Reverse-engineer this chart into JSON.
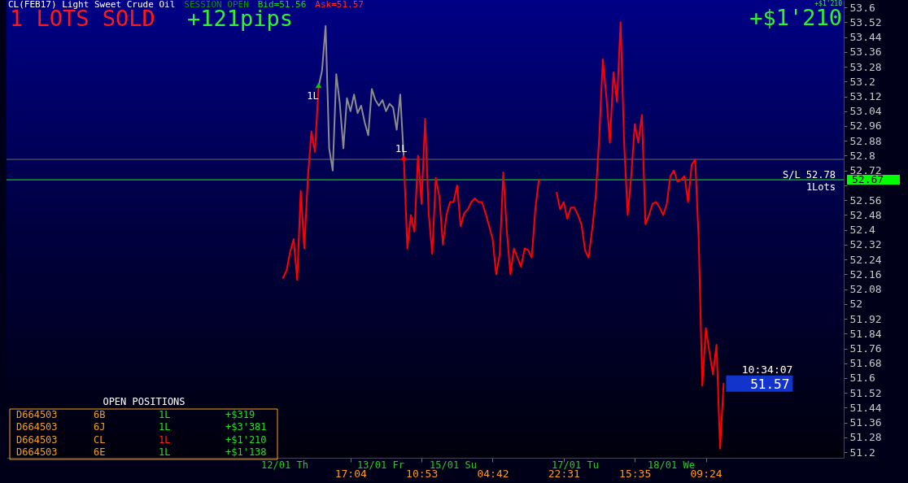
{
  "chart_data": {
    "type": "line",
    "title": "CL(FEB17) Light Sweet Crude Oil",
    "annotations": [
      "SESSION OPEN",
      "Bid=51.56",
      "Ask=51.57",
      "1 LOTS SOLD",
      "+121pips",
      "+$1'210",
      "+$1'210",
      "OPEN POSITIONS",
      "D664503",
      "6B",
      "1L",
      "+$319",
      "D664503",
      "6J",
      "1L",
      "+$3'381",
      "D664503",
      "CL",
      "1L",
      "+$1'210",
      "D664503",
      "6E",
      "1L",
      "+$1'138",
      "12/01 Th",
      "13/01 Fr",
      "15/01 Su",
      "17/01 Tu",
      "18/01 We",
      "10:34:07",
      "51.57",
      {
        "text": "S/L 52.78",
        "y": 52.67
      },
      {
        "text": "1Lots",
        "y": 52.67
      }
    ],
    "categories": [
      null,
      null,
      null,
      null,
      null,
      null,
      null,
      null,
      null,
      null,
      null,
      null,
      null,
      null,
      null,
      null,
      null,
      null,
      null,
      null,
      null,
      null,
      null,
      null,
      null,
      null,
      null,
      null,
      null,
      null,
      null,
      null,
      null,
      null,
      null,
      null,
      null,
      null,
      null,
      null,
      null,
      null,
      null,
      null,
      null,
      null,
      null,
      null,
      null,
      null,
      null,
      null,
      null,
      null,
      null,
      null,
      null,
      null,
      null,
      null,
      null,
      null,
      null,
      null,
      null,
      null,
      null,
      null,
      null,
      null,
      null,
      null,
      null,
      null,
      null,
      null,
      null,
      null,
      null,
      null,
      null,
      null,
      null,
      null,
      null,
      null,
      null,
      null,
      null,
      null,
      null,
      null,
      null,
      null,
      null,
      null,
      "17:04",
      null,
      null,
      null,
      null,
      null,
      null,
      null,
      null,
      null,
      null,
      null,
      null,
      null,
      null,
      null,
      null,
      null,
      null,
      null,
      "10:53",
      null,
      null,
      null,
      null,
      null,
      null,
      null,
      null,
      null,
      null,
      null,
      null,
      null,
      null,
      null,
      null,
      null,
      null,
      null,
      "04:42",
      null,
      null,
      null,
      null,
      null,
      null,
      null,
      null,
      null,
      null,
      null,
      null,
      null,
      null,
      null,
      null,
      null,
      null,
      null,
      "22:31",
      null,
      null,
      null,
      null,
      null,
      null,
      null,
      null,
      null,
      null,
      null,
      null,
      null,
      null,
      null,
      null,
      null,
      null,
      null,
      "15:35",
      null,
      null,
      null,
      null,
      null,
      null,
      null,
      null,
      null,
      null,
      null,
      null,
      null,
      null,
      null,
      null,
      null,
      null,
      null,
      "09:24",
      null,
      null,
      null,
      null,
      null,
      null,
      null,
      null,
      null,
      null,
      null,
      null,
      null,
      null,
      null,
      null,
      null,
      null,
      null,
      null,
      null,
      null,
      null,
      null,
      null,
      null,
      null,
      null,
      null,
      null,
      null,
      null,
      null,
      null,
      null,
      null,
      null,
      null
    ],
    "ylim": [
      51.17,
      53.64
    ],
    "yticks": [
      51.2,
      51.28,
      51.36,
      51.44,
      51.52,
      51.6,
      51.68,
      51.76,
      51.84,
      51.92,
      52,
      52.08,
      52.16,
      52.24,
      52.32,
      52.4,
      52.48,
      52.56,
      {
        "value": 52.64,
        "label": null
      },
      52.72,
      52.8,
      52.88,
      52.96,
      53.04,
      53.12,
      53.2,
      53.28,
      53.36,
      53.44,
      53.52,
      53.6
    ],
    "ref_lines": [
      {
        "axis": "y",
        "value": 52.78,
        "color": "#6a6a6a"
      },
      {
        "axis": "y",
        "value": 52.67,
        "color": "#00ff00",
        "label": "52.67"
      }
    ],
    "series": [
      {
        "color": "#ff0000",
        "values": [
          null,
          null,
          null,
          null,
          null,
          null,
          null,
          null,
          null,
          null,
          null,
          null,
          null,
          null,
          null,
          null,
          null,
          null,
          null,
          null,
          null,
          null,
          null,
          null,
          null,
          null,
          null,
          null,
          null,
          null,
          null,
          null,
          null,
          null,
          null,
          null,
          null,
          null,
          null,
          null,
          null,
          null,
          null,
          null,
          null,
          null,
          null,
          null,
          null,
          null,
          null,
          null,
          null,
          null,
          null,
          null,
          null,
          null,
          null,
          null,
          null,
          null,
          null,
          null,
          null,
          null,
          null,
          null,
          null,
          null,
          null,
          null,
          null,
          null,
          null,
          null,
          null,
          52.14,
          52.18,
          52.28,
          52.35,
          52.13,
          52.61,
          52.3,
          52.68,
          52.93,
          52.82,
          53.17,
          null,
          null,
          null,
          null,
          null,
          null,
          null,
          null,
          null,
          null,
          null,
          null,
          null,
          null,
          null,
          null,
          null,
          null,
          null,
          null,
          null,
          null,
          null,
          52.79,
          52.3,
          52.48,
          52.39,
          52.8,
          52.54,
          53.0,
          52.49,
          52.27,
          52.68,
          52.58,
          52.32,
          52.48,
          52.55,
          52.55,
          52.64,
          52.42,
          52.49,
          52.51,
          52.55,
          52.57,
          52.55,
          52.55,
          52.49,
          52.42,
          52.35,
          52.16,
          52.27,
          52.71,
          52.39,
          52.16,
          52.3,
          52.25,
          52.2,
          52.3,
          52.29,
          52.25,
          52.51,
          52.67,
          null,
          null,
          null,
          null,
          52.6,
          52.51,
          52.55,
          52.46,
          52.52,
          52.52,
          52.48,
          52.43,
          52.29,
          52.25,
          52.4,
          52.58,
          52.9,
          53.32,
          53.12,
          52.87,
          53.25,
          53.09,
          53.52,
          52.87,
          52.48,
          52.69,
          52.97,
          52.87,
          53.02,
          52.43,
          52.48,
          52.54,
          52.55,
          52.52,
          52.48,
          52.54,
          52.69,
          52.72,
          52.66,
          52.67,
          52.69,
          52.55,
          52.75,
          52.78,
          52.34,
          51.56,
          51.87,
          51.74,
          51.62,
          51.78,
          51.22,
          51.57,
          null,
          null,
          null,
          null,
          null,
          null,
          null,
          null,
          null,
          null,
          null,
          null,
          null,
          null,
          null,
          null,
          null,
          null,
          null,
          null,
          null,
          null,
          null,
          null,
          null,
          null,
          null,
          null,
          null,
          null,
          null,
          null,
          null
        ]
      },
      {
        "color": "#8c8c8c",
        "values": [
          null,
          null,
          null,
          null,
          null,
          null,
          null,
          null,
          null,
          null,
          null,
          null,
          null,
          null,
          null,
          null,
          null,
          null,
          null,
          null,
          null,
          null,
          null,
          null,
          null,
          null,
          null,
          null,
          null,
          null,
          null,
          null,
          null,
          null,
          null,
          null,
          null,
          null,
          null,
          null,
          null,
          null,
          null,
          null,
          null,
          null,
          null,
          null,
          null,
          null,
          null,
          null,
          null,
          null,
          null,
          null,
          null,
          null,
          null,
          null,
          null,
          null,
          null,
          null,
          null,
          null,
          null,
          null,
          null,
          null,
          null,
          null,
          null,
          null,
          null,
          null,
          null,
          null,
          null,
          null,
          null,
          null,
          null,
          null,
          null,
          null,
          null,
          53.17,
          53.26,
          53.5,
          52.84,
          52.72,
          53.24,
          53.08,
          52.84,
          53.11,
          53.04,
          53.13,
          53.03,
          53.07,
          52.98,
          52.91,
          53.16,
          53.1,
          53.07,
          53.1,
          53.04,
          53.08,
          53.06,
          52.94,
          53.13,
          52.79,
          null,
          null,
          null,
          null,
          null,
          null,
          null,
          null,
          null,
          null,
          null,
          null,
          null,
          null,
          null,
          null,
          null,
          null,
          null,
          null,
          null,
          null,
          null,
          null,
          null,
          null,
          null,
          null,
          null,
          null,
          null,
          null,
          null,
          null,
          null,
          null,
          null,
          null,
          null,
          null,
          null,
          null,
          null,
          null,
          null,
          null,
          null,
          null,
          null,
          null,
          null,
          null,
          null,
          null,
          null,
          null,
          null,
          null,
          null,
          null,
          null,
          null,
          null,
          null,
          null,
          null,
          null,
          null,
          null,
          null,
          null,
          null,
          null,
          null,
          null,
          null,
          null,
          null,
          null,
          null,
          null,
          null,
          null,
          null,
          null,
          null,
          null,
          null,
          null,
          null,
          null,
          null,
          null,
          null,
          null,
          null,
          null,
          null,
          null,
          null,
          null,
          null,
          null,
          null,
          null,
          null,
          null,
          null,
          null,
          null,
          null,
          null,
          null,
          null,
          null,
          null,
          null,
          null,
          null,
          null,
          null,
          null,
          null
        ]
      },
      {
        "type": "scatter",
        "name": "1L",
        "marker": "triangle",
        "color": "#00c800",
        "values": [
          null,
          null,
          null,
          null,
          null,
          null,
          null,
          null,
          null,
          null,
          null,
          null,
          null,
          null,
          null,
          null,
          null,
          null,
          null,
          null,
          null,
          null,
          null,
          null,
          null,
          null,
          null,
          null,
          null,
          null,
          null,
          null,
          null,
          null,
          null,
          null,
          null,
          null,
          null,
          null,
          null,
          null,
          null,
          null,
          null,
          null,
          null,
          null,
          null,
          null,
          null,
          null,
          null,
          null,
          null,
          null,
          null,
          null,
          null,
          null,
          null,
          null,
          null,
          null,
          null,
          null,
          null,
          null,
          null,
          null,
          null,
          null,
          null,
          null,
          null,
          null,
          null,
          null,
          null,
          null,
          null,
          null,
          null,
          null,
          null,
          null,
          null,
          53.18,
          null,
          null,
          null,
          null,
          null,
          null,
          null,
          null,
          null,
          null,
          null,
          null,
          null,
          null,
          null,
          null,
          null,
          null,
          null,
          null,
          null,
          null,
          null,
          null,
          null,
          null,
          null,
          null,
          null,
          null,
          null,
          null,
          null,
          null,
          null,
          null,
          null,
          null,
          null,
          null,
          null,
          null,
          null,
          null,
          null,
          null,
          null,
          null,
          null,
          null,
          null,
          null,
          null,
          null,
          null,
          null,
          null,
          null,
          null,
          null,
          null,
          null,
          null,
          null,
          null,
          null,
          null,
          null,
          null,
          null,
          null,
          null,
          null,
          null,
          null,
          null,
          null,
          null,
          null,
          null,
          null,
          null,
          null,
          null,
          null,
          null,
          null,
          null,
          null,
          null,
          null,
          null,
          null,
          null,
          null,
          null,
          null,
          null,
          null,
          null,
          null,
          null,
          null,
          null,
          null,
          null,
          null,
          null,
          null,
          null,
          null,
          null,
          null,
          null,
          null,
          null,
          null,
          null,
          null,
          null,
          null,
          null,
          null,
          null,
          null,
          null,
          null,
          null,
          null,
          null,
          null,
          null,
          null,
          null,
          null,
          null,
          null,
          null,
          null,
          null,
          null,
          null,
          null,
          null,
          null,
          null,
          null
        ]
      },
      {
        "type": "scatter",
        "name": "1L",
        "marker": "triangle",
        "color": "#ff0000",
        "values": [
          null,
          null,
          null,
          null,
          null,
          null,
          null,
          null,
          null,
          null,
          null,
          null,
          null,
          null,
          null,
          null,
          null,
          null,
          null,
          null,
          null,
          null,
          null,
          null,
          null,
          null,
          null,
          null,
          null,
          null,
          null,
          null,
          null,
          null,
          null,
          null,
          null,
          null,
          null,
          null,
          null,
          null,
          null,
          null,
          null,
          null,
          null,
          null,
          null,
          null,
          null,
          null,
          null,
          null,
          null,
          null,
          null,
          null,
          null,
          null,
          null,
          null,
          null,
          null,
          null,
          null,
          null,
          null,
          null,
          null,
          null,
          null,
          null,
          null,
          null,
          null,
          null,
          null,
          null,
          null,
          null,
          null,
          null,
          null,
          null,
          null,
          null,
          null,
          null,
          null,
          null,
          null,
          null,
          null,
          null,
          null,
          null,
          null,
          null,
          null,
          null,
          null,
          null,
          null,
          null,
          null,
          null,
          null,
          null,
          null,
          null,
          52.79,
          null,
          null,
          null,
          null,
          null,
          null,
          null,
          null,
          null,
          null,
          null,
          null,
          null,
          null,
          null,
          null,
          null,
          null,
          null,
          null,
          null,
          null,
          null,
          null,
          null,
          null,
          null,
          null,
          null,
          null,
          null,
          null,
          null,
          null,
          null,
          null,
          null,
          null,
          null,
          null,
          null,
          null,
          null,
          null,
          null,
          null,
          null,
          null,
          null,
          null,
          null,
          null,
          null,
          null,
          null,
          null,
          null,
          null,
          null,
          null,
          null,
          null,
          null,
          null,
          null,
          null,
          null,
          null,
          null,
          null,
          null,
          null,
          null,
          null,
          null,
          null,
          null,
          null,
          null,
          null,
          null,
          null,
          null,
          null,
          null,
          null,
          null,
          null,
          null,
          null,
          null,
          null,
          null,
          null,
          null,
          null,
          null,
          null,
          null,
          null,
          null,
          null,
          null,
          null,
          null,
          null,
          null,
          null,
          null,
          null,
          null,
          null,
          null,
          null,
          null,
          null,
          null,
          null,
          null,
          null,
          null,
          null,
          null
        ]
      }
    ]
  }
}
